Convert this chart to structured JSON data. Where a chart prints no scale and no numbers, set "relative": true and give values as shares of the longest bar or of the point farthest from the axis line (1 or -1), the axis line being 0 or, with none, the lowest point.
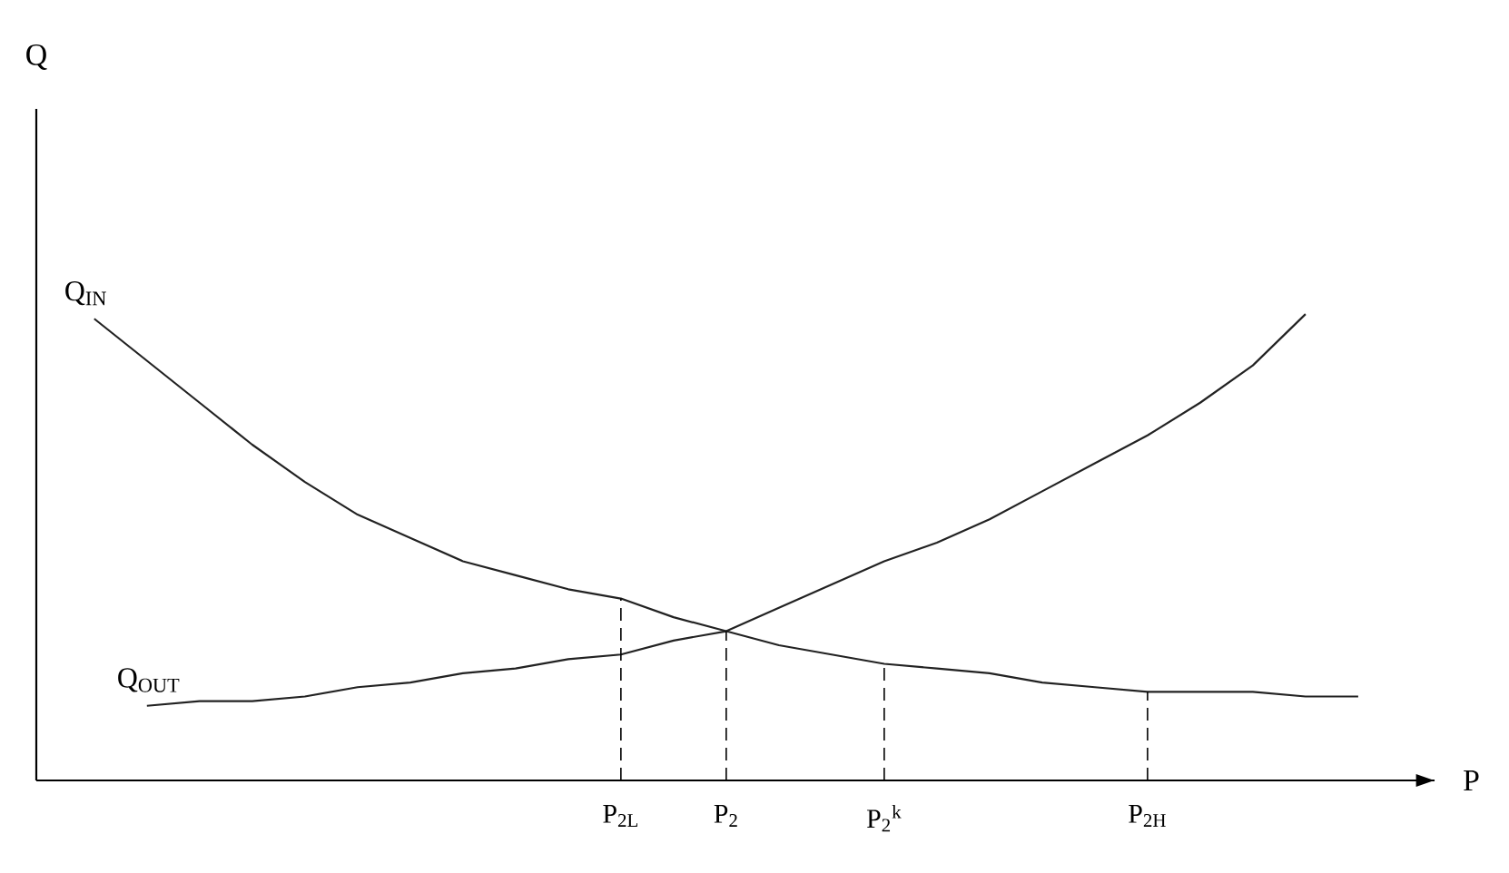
{
  "chart_data": {
    "type": "line",
    "relative": true,
    "xlabel": "P",
    "annotations": [
      "Q"
    ],
    "legend": false,
    "marker": "none",
    "line_style": "solid",
    "grid": false,
    "categories": [
      null,
      null,
      null,
      null,
      null,
      null,
      null,
      null,
      null,
      null,
      "P$_{2L}$",
      null,
      "P$_{2}$",
      null,
      null,
      "P$_{2}$$^{k}$",
      null,
      null,
      null,
      null,
      "P$_{2H}$",
      null,
      null,
      null,
      null
    ],
    "series": [
      {
        "name": "Q$_{IN}$",
        "color": "#222222",
        "values": [
          0.99,
          0.9,
          0.81,
          0.72,
          0.64,
          0.57,
          0.52,
          0.47,
          0.44,
          0.41,
          0.39,
          0.35,
          0.32,
          0.29,
          0.27,
          0.25,
          0.24,
          0.23,
          0.21,
          0.2,
          0.19,
          0.19,
          0.19,
          0.18,
          0.18
        ]
      },
      {
        "name": "Q$_{OUT}$",
        "color": "#222222",
        "values": [
          null,
          0.16,
          0.17,
          0.17,
          0.18,
          0.2,
          0.21,
          0.23,
          0.24,
          0.26,
          0.27,
          0.3,
          0.32,
          0.37,
          0.42,
          0.47,
          0.51,
          0.56,
          0.62,
          0.68,
          0.74,
          0.81,
          0.89,
          1.0,
          null
        ]
      }
    ],
    "ref_lines": [
      {
        "axis": "x",
        "value": "P$_{2L}$",
        "line_style": "dashed"
      },
      {
        "axis": "x",
        "value": "P$_{2}$",
        "line_style": "dashed"
      },
      {
        "axis": "x",
        "value": "P$_{2}$$^{k}$",
        "line_style": "dashed"
      },
      {
        "axis": "x",
        "value": "P$_{2H}$",
        "line_style": "dashed"
      }
    ]
  }
}
